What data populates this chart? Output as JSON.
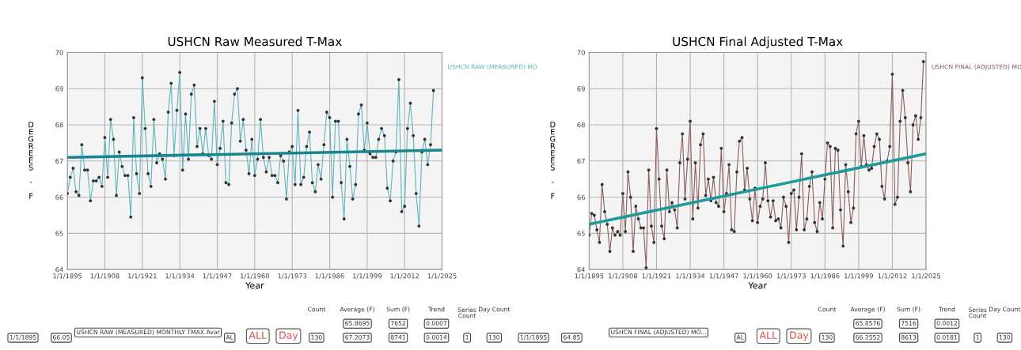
{
  "chart_data": [
    {
      "type": "line",
      "title": "USHCN Raw Measured T-Max",
      "xlabel": "Year",
      "ylabel": "DEGREES - F",
      "xlim": [
        "1895-01-01",
        "2025-01-01"
      ],
      "xticks": [
        {
          "value": "1895-01-01",
          "label": "1/1/1895"
        },
        {
          "value": "1908-01-01",
          "label": "1/1/1908"
        },
        {
          "value": "1921-01-01",
          "label": "1/1/1921"
        },
        {
          "value": "1934-01-01",
          "label": "1/1/1934"
        },
        {
          "value": "1947-01-01",
          "label": "1/1/1947"
        },
        {
          "value": "1960-01-01",
          "label": "1/1/1960"
        },
        {
          "value": "1973-01-01",
          "label": "1/1/1973"
        },
        {
          "value": "1986-01-01",
          "label": "1/1/1986"
        },
        {
          "value": "1999-01-01",
          "label": "1/1/1999"
        },
        {
          "value": "2012-01-01",
          "label": "1/1/2012"
        },
        {
          "value": "2025-01-01",
          "label": "1/1/2025"
        }
      ],
      "ylim": [
        64,
        70
      ],
      "yticks": [
        64,
        65,
        66,
        67,
        68,
        69,
        70
      ],
      "grid": true,
      "legend": "right",
      "series": [
        {
          "name": "USHCN RAW (MEASURED) MO",
          "color": "#5fb3bb",
          "marker": "circle",
          "x": [
            "1895",
            "1896",
            "1897",
            "1898",
            "1899",
            "1900",
            "1901",
            "1902",
            "1903",
            "1904",
            "1905",
            "1906",
            "1907",
            "1908",
            "1909",
            "1910",
            "1911",
            "1912",
            "1913",
            "1914",
            "1915",
            "1916",
            "1917",
            "1918",
            "1919",
            "1920",
            "1921",
            "1922",
            "1923",
            "1924",
            "1925",
            "1926",
            "1927",
            "1928",
            "1929",
            "1930",
            "1931",
            "1932",
            "1933",
            "1934",
            "1935",
            "1936",
            "1937",
            "1938",
            "1939",
            "1940",
            "1941",
            "1942",
            "1943",
            "1944",
            "1945",
            "1946",
            "1947",
            "1948",
            "1949",
            "1950",
            "1951",
            "1952",
            "1953",
            "1954",
            "1955",
            "1956",
            "1957",
            "1958",
            "1959",
            "1960",
            "1961",
            "1962",
            "1963",
            "1964",
            "1965",
            "1966",
            "1967",
            "1968",
            "1969",
            "1970",
            "1971",
            "1972",
            "1973",
            "1974",
            "1975",
            "1976",
            "1977",
            "1978",
            "1979",
            "1980",
            "1981",
            "1982",
            "1983",
            "1984",
            "1985",
            "1986",
            "1987",
            "1988",
            "1989",
            "1990",
            "1991",
            "1992",
            "1993",
            "1994",
            "1995",
            "1996",
            "1997",
            "1998",
            "1999",
            "2000",
            "2001",
            "2002",
            "2003",
            "2004",
            "2005",
            "2006",
            "2007",
            "2008",
            "2009",
            "2010",
            "2011",
            "2012",
            "2013",
            "2014",
            "2015",
            "2016",
            "2017",
            "2018",
            "2019",
            "2020",
            "2021",
            "2022"
          ],
          "values": [
            66.1,
            66.55,
            66.8,
            66.15,
            66.05,
            67.45,
            66.75,
            66.75,
            65.9,
            66.45,
            66.45,
            66.55,
            66.3,
            67.65,
            66.55,
            68.15,
            67.6,
            66.05,
            67.25,
            66.85,
            66.6,
            66.6,
            65.45,
            68.2,
            66.65,
            66.1,
            69.3,
            67.9,
            66.65,
            66.3,
            68.15,
            66.95,
            67.2,
            67.05,
            66.5,
            68.35,
            69.15,
            67.15,
            68.4,
            69.45,
            66.75,
            68.3,
            67.05,
            68.85,
            69.1,
            67.4,
            67.9,
            67.2,
            67.9,
            67.15,
            67.05,
            68.65,
            66.9,
            67.35,
            68.1,
            66.4,
            66.35,
            68.05,
            68.85,
            69.0,
            67.55,
            68.15,
            67.3,
            66.65,
            67.6,
            66.6,
            67.05,
            68.15,
            67.1,
            66.7,
            67.1,
            66.6,
            66.6,
            66.4,
            67.15,
            67.0,
            65.95,
            67.25,
            67.4,
            66.35,
            68.4,
            66.35,
            66.55,
            67.4,
            67.8,
            66.4,
            66.15,
            66.9,
            66.5,
            67.45,
            68.35,
            68.2,
            66.0,
            68.1,
            68.1,
            66.4,
            65.4,
            67.6,
            66.85,
            65.95,
            66.35,
            68.3,
            68.55,
            67.3,
            68.05,
            67.2,
            67.1,
            67.1,
            67.6,
            67.9,
            67.7,
            66.25,
            65.9,
            67.0,
            67.25,
            69.25,
            65.6,
            65.75,
            67.9,
            68.6,
            67.7,
            66.1,
            65.2,
            67.25,
            67.6,
            66.9,
            67.45,
            68.95
          ]
        },
        {
          "color": "#17868f",
          "marker": "none",
          "x": [
            "1895",
            "2025"
          ],
          "values": [
            67.1,
            67.3
          ]
        }
      ],
      "annotations": [
        "1/1/1895",
        "66.05",
        "USHCN RAW (MEASURED) MONTHLY TMAX Avar",
        "AL",
        "ALL",
        "Day",
        "Count",
        "Average (F)",
        "Sum (F)",
        "Trend",
        "Series Count",
        "Day Count",
        "130",
        "65.8695",
        "7652",
        "0.0007",
        "67.2073",
        "8741",
        "0.0014",
        "1",
        "130"
      ]
    },
    {
      "type": "line",
      "title": "USHCN Final Adjusted T-Max",
      "xlabel": "Year",
      "ylabel": "DEGREES - F",
      "xlim": [
        "1895-01-01",
        "2025-01-01"
      ],
      "xticks": [
        {
          "value": "1895-01-01",
          "label": "1/1/1895"
        },
        {
          "value": "1908-01-01",
          "label": "1/1/1908"
        },
        {
          "value": "1921-01-01",
          "label": "1/1/1921"
        },
        {
          "value": "1934-01-01",
          "label": "1/1/1934"
        },
        {
          "value": "1947-01-01",
          "label": "1/1/1947"
        },
        {
          "value": "1960-01-01",
          "label": "1/1/1960"
        },
        {
          "value": "1973-01-01",
          "label": "1/1/1973"
        },
        {
          "value": "1986-01-01",
          "label": "1/1/1986"
        },
        {
          "value": "1999-01-01",
          "label": "1/1/1999"
        },
        {
          "value": "2012-01-01",
          "label": "1/1/2012"
        },
        {
          "value": "2025-01-01",
          "label": "1/1/2025"
        }
      ],
      "ylim": [
        64,
        70
      ],
      "yticks": [
        64,
        65,
        66,
        67,
        68,
        69,
        70
      ],
      "grid": true,
      "legend": "right",
      "series": [
        {
          "name": "USHCN FINAL (ADJUSTED) MO",
          "color": "#8a5c5c",
          "marker": "circle",
          "x": [
            "1895",
            "1896",
            "1897",
            "1898",
            "1899",
            "1900",
            "1901",
            "1902",
            "1903",
            "1904",
            "1905",
            "1906",
            "1907",
            "1908",
            "1909",
            "1910",
            "1911",
            "1912",
            "1913",
            "1914",
            "1915",
            "1916",
            "1917",
            "1918",
            "1919",
            "1920",
            "1921",
            "1922",
            "1923",
            "1924",
            "1925",
            "1926",
            "1927",
            "1928",
            "1929",
            "1930",
            "1931",
            "1932",
            "1933",
            "1934",
            "1935",
            "1936",
            "1937",
            "1938",
            "1939",
            "1940",
            "1941",
            "1942",
            "1943",
            "1944",
            "1945",
            "1946",
            "1947",
            "1948",
            "1949",
            "1950",
            "1951",
            "1952",
            "1953",
            "1954",
            "1955",
            "1956",
            "1957",
            "1958",
            "1959",
            "1960",
            "1961",
            "1962",
            "1963",
            "1964",
            "1965",
            "1966",
            "1967",
            "1968",
            "1969",
            "1970",
            "1971",
            "1972",
            "1973",
            "1974",
            "1975",
            "1976",
            "1977",
            "1978",
            "1979",
            "1980",
            "1981",
            "1982",
            "1983",
            "1984",
            "1985",
            "1986",
            "1987",
            "1988",
            "1989",
            "1990",
            "1991",
            "1992",
            "1993",
            "1994",
            "1995",
            "1996",
            "1997",
            "1998",
            "1999",
            "2000",
            "2001",
            "2002",
            "2003",
            "2004",
            "2005",
            "2006",
            "2007",
            "2008",
            "2009",
            "2010",
            "2011",
            "2012",
            "2013",
            "2014",
            "2015",
            "2016",
            "2017",
            "2018",
            "2019",
            "2020",
            "2021",
            "2022",
            "2023",
            "2024"
          ],
          "values": [
            64.95,
            65.55,
            65.5,
            65.1,
            64.75,
            66.35,
            65.6,
            65.25,
            64.5,
            65.15,
            64.95,
            65.05,
            64.95,
            66.1,
            65.05,
            66.7,
            66.0,
            64.5,
            65.75,
            65.4,
            65.15,
            65.15,
            64.05,
            66.75,
            65.2,
            64.75,
            67.9,
            66.5,
            65.2,
            64.85,
            66.75,
            65.6,
            65.85,
            65.65,
            65.15,
            66.95,
            67.75,
            65.95,
            67.05,
            68.1,
            65.4,
            66.95,
            65.7,
            67.45,
            67.75,
            66.05,
            66.5,
            65.9,
            66.55,
            65.85,
            65.75,
            67.35,
            65.6,
            66.1,
            66.9,
            65.1,
            65.05,
            66.7,
            67.55,
            67.65,
            66.2,
            66.8,
            65.95,
            65.35,
            66.25,
            65.3,
            65.75,
            65.95,
            66.95,
            65.9,
            65.45,
            65.9,
            65.35,
            65.4,
            65.15,
            66.0,
            65.75,
            64.75,
            66.1,
            66.2,
            65.1,
            66.0,
            67.2,
            65.1,
            65.4,
            66.3,
            66.7,
            65.3,
            65.05,
            65.85,
            65.4,
            66.5,
            67.5,
            67.4,
            65.15,
            67.35,
            67.3,
            65.65,
            64.65,
            66.9,
            66.15,
            65.3,
            65.7,
            67.75,
            68.1,
            66.85,
            67.7,
            66.9,
            66.75,
            66.8,
            67.4,
            67.75,
            67.6,
            66.3,
            65.95,
            67.0,
            67.4,
            69.4,
            65.8,
            66.0,
            68.1,
            68.95,
            68.2,
            66.95,
            66.15,
            68.0,
            68.25,
            67.6,
            68.2,
            69.75
          ]
        },
        {
          "color": "#1e9a9a",
          "marker": "none",
          "x": [
            "1895",
            "2025"
          ],
          "values": [
            65.25,
            67.2
          ]
        }
      ],
      "annotations": [
        "1/1/1895",
        "64.85",
        "USHCN FINAL (ADJUSTED) MO...",
        "AL",
        "ALL",
        "Day",
        "Count",
        "Average (F)",
        "Sum (F)",
        "Trend",
        "Series Count",
        "Day Count",
        "130",
        "65.8576",
        "7516",
        "0.0012",
        "66.2552",
        "8613",
        "0.0181",
        "1",
        "130"
      ]
    }
  ]
}
